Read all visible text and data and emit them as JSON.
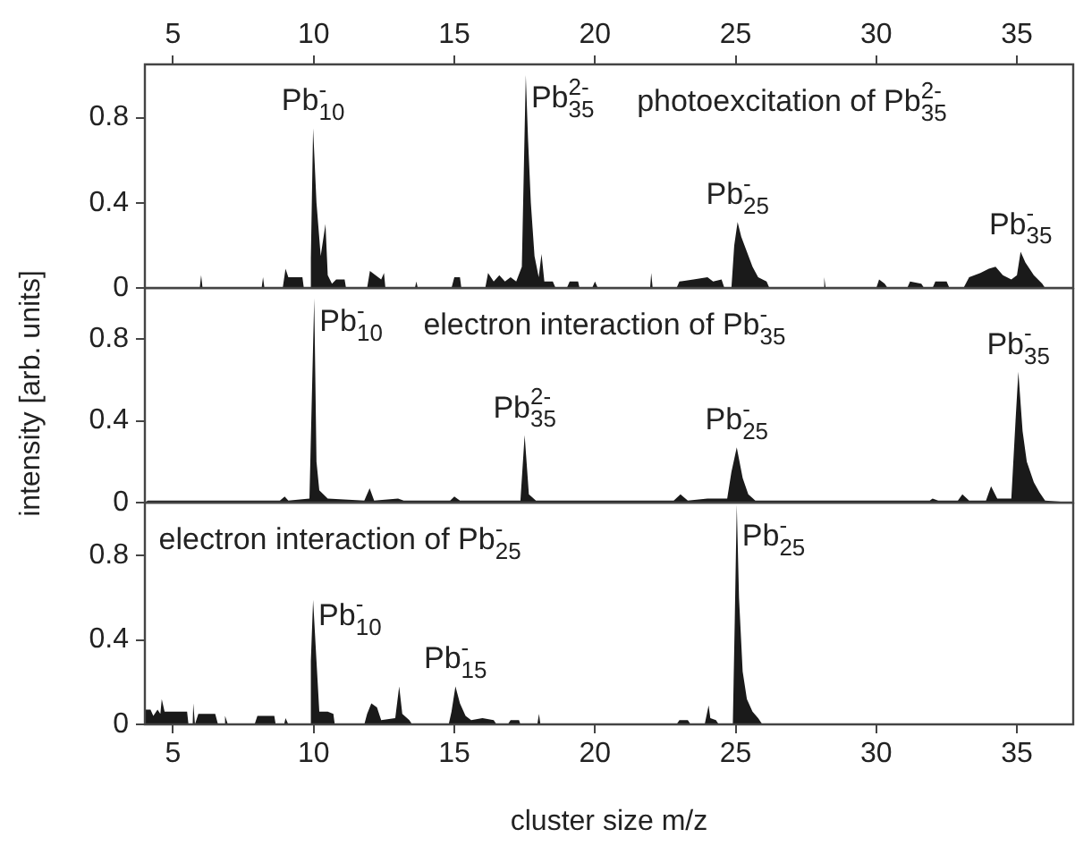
{
  "chart_data": [
    {
      "type": "area",
      "title": "photoexcitation of Pb$^{2-}$$_{35}$",
      "x": [
        4,
        5.95,
        6,
        6.05,
        8.15,
        8.2,
        8.25,
        8.9,
        9.0,
        9.1,
        9.6,
        9.65,
        9.85,
        9.9,
        9.98,
        10.1,
        10.25,
        10.42,
        10.5,
        10.65,
        10.8,
        11.1,
        11.15,
        11.9,
        12.0,
        12.2,
        12.4,
        12.5,
        12.55,
        13.6,
        13.65,
        13.7,
        14.9,
        15.0,
        15.2,
        15.25,
        16.1,
        16.2,
        16.4,
        16.6,
        16.8,
        17.0,
        17.2,
        17.4,
        17.54,
        17.62,
        17.72,
        17.85,
        18.0,
        18.1,
        18.2,
        18.5,
        18.6,
        19.0,
        19.1,
        19.4,
        19.45,
        19.9,
        20.0,
        20.1,
        21.96,
        22.0,
        22.05,
        22.9,
        23.0,
        23.5,
        24.0,
        24.2,
        24.5,
        24.6,
        24.85,
        24.95,
        25.07,
        25.2,
        25.4,
        25.6,
        25.8,
        26.1,
        26.2,
        28.1,
        28.15,
        28.2,
        30.0,
        30.1,
        30.3,
        30.4,
        31.1,
        31.2,
        31.6,
        31.7,
        32.0,
        32.1,
        32.5,
        32.6,
        33.1,
        33.3,
        33.7,
        34.0,
        34.24,
        34.5,
        34.8,
        35.0,
        35.13,
        35.3,
        35.6,
        35.9,
        36.0,
        37
      ],
      "values": [
        0,
        0,
        0.06,
        0,
        0,
        0.05,
        0,
        0,
        0.09,
        0.05,
        0.05,
        0,
        0,
        0.14,
        0.75,
        0.4,
        0.15,
        0.3,
        0.06,
        0.02,
        0.04,
        0.04,
        0,
        0,
        0.08,
        0.06,
        0.04,
        0.07,
        0,
        0,
        0.03,
        0,
        0,
        0.05,
        0.05,
        0,
        0,
        0.07,
        0.03,
        0.06,
        0.03,
        0.05,
        0.03,
        0.1,
        1.0,
        0.7,
        0.4,
        0.15,
        0.05,
        0.16,
        0.03,
        0.03,
        0,
        0,
        0.03,
        0.03,
        0,
        0,
        0.03,
        0,
        0,
        0.07,
        0,
        0,
        0.03,
        0.04,
        0.05,
        0.03,
        0.04,
        0,
        0,
        0.2,
        0.31,
        0.24,
        0.17,
        0.1,
        0.05,
        0.03,
        0,
        0,
        0.05,
        0,
        0,
        0.04,
        0.02,
        0,
        0,
        0.03,
        0.02,
        0,
        0,
        0.03,
        0.03,
        0,
        0,
        0.05,
        0.07,
        0.09,
        0.1,
        0.06,
        0.04,
        0.06,
        0.17,
        0.12,
        0.06,
        0.02,
        0,
        0
      ],
      "color": "#1a1a1a",
      "marker": "none",
      "xlim": [
        4,
        37
      ],
      "x2lim": [
        4,
        37
      ],
      "x2ticks": [
        5,
        10,
        15,
        20,
        25,
        30,
        35
      ],
      "ylim": [
        0,
        1.05
      ],
      "yticks": [
        0,
        0.4,
        0.8
      ],
      "tick_labels": "y",
      "grid": false,
      "legend": false,
      "annotations": [
        {
          "text": "Pb$^{-}$$_{10}$",
          "x": 9.98,
          "y": 0.75
        },
        {
          "text": "Pb$^{2-}$$_{35}$",
          "x": 17.54,
          "y": 1.0
        },
        {
          "text": "Pb$^{-}$$_{25}$",
          "x": 25.07,
          "y": 0.31
        },
        {
          "text": "Pb$^{-}$$_{35}$",
          "x": 35.13,
          "y": 0.17
        }
      ]
    },
    {
      "type": "area",
      "title": "electron interaction of Pb$^{-}$$_{35}$",
      "ylabel": "intensity [arb. units]",
      "x": [
        4,
        4.1,
        8.8,
        8.97,
        9.1,
        9.85,
        9.95,
        10.02,
        10.1,
        10.2,
        10.5,
        11.8,
        11.99,
        12.15,
        13.0,
        13.2,
        14.85,
        15.0,
        15.2,
        17.35,
        17.5,
        17.65,
        17.9,
        22.8,
        23.04,
        23.3,
        24.0,
        24.7,
        24.85,
        25.04,
        25.25,
        25.45,
        25.7,
        31.9,
        32.0,
        32.2,
        32.9,
        33.06,
        33.3,
        33.9,
        34.08,
        34.3,
        34.8,
        34.95,
        35.05,
        35.2,
        35.35,
        35.6,
        35.8,
        36.0,
        37
      ],
      "values": [
        0,
        0.01,
        0.01,
        0.03,
        0.01,
        0.02,
        0.6,
        1.0,
        0.2,
        0.06,
        0.02,
        0.01,
        0.07,
        0.01,
        0.02,
        0.01,
        0.01,
        0.03,
        0.01,
        0.01,
        0.33,
        0.04,
        0.01,
        0.01,
        0.04,
        0.01,
        0.02,
        0.02,
        0.15,
        0.27,
        0.12,
        0.04,
        0.01,
        0.01,
        0.02,
        0.01,
        0.01,
        0.04,
        0.01,
        0.01,
        0.08,
        0.02,
        0.02,
        0.4,
        0.64,
        0.35,
        0.2,
        0.1,
        0.05,
        0.01,
        0
      ],
      "color": "#1a1a1a",
      "marker": "none",
      "xlim": [
        4,
        37
      ],
      "ylim": [
        0,
        1.05
      ],
      "yticks": [
        0,
        0.4,
        0.8
      ],
      "tick_labels": "y",
      "grid": false,
      "legend": false,
      "annotations": [
        {
          "text": "Pb$^{-}$$_{10}$",
          "x": 10.02,
          "y": 1.0
        },
        {
          "text": "Pb$^{2-}$$_{35}$",
          "x": 17.5,
          "y": 0.33
        },
        {
          "text": "Pb$^{-}$$_{25}$",
          "x": 25.04,
          "y": 0.27
        },
        {
          "text": "Pb$^{-}$$_{35}$",
          "x": 35.05,
          "y": 0.64
        }
      ]
    },
    {
      "type": "area",
      "title": "electron interaction of Pb$^{-}$$_{25}$",
      "xlabel": "cluster size m/z",
      "x": [
        4,
        4.0,
        4.2,
        4.3,
        4.45,
        4.55,
        4.6,
        4.7,
        5.0,
        5.5,
        5.55,
        5.7,
        5.72,
        5.78,
        5.9,
        6.5,
        6.6,
        6.8,
        6.85,
        6.95,
        7.9,
        8.0,
        8.6,
        8.65,
        8.95,
        9.0,
        9.1,
        9.85,
        9.9,
        9.98,
        10.1,
        10.2,
        10.5,
        10.7,
        10.75,
        11.8,
        11.9,
        12.05,
        12.25,
        12.4,
        12.9,
        13.04,
        13.15,
        13.4,
        13.5,
        14.8,
        14.9,
        15.04,
        15.2,
        15.4,
        15.6,
        16.0,
        16.4,
        16.5,
        16.9,
        17.0,
        17.3,
        17.35,
        17.95,
        18.01,
        18.06,
        22.9,
        23.0,
        23.3,
        23.4,
        23.9,
        24.04,
        24.1,
        24.3,
        24.4,
        24.9,
        24.97,
        25.04,
        25.12,
        25.25,
        25.4,
        25.6,
        25.8,
        25.95,
        37
      ],
      "values": [
        0,
        0.07,
        0.07,
        0.04,
        0.07,
        0.05,
        0.12,
        0.06,
        0.06,
        0.06,
        0,
        0,
        0.1,
        0,
        0.05,
        0.05,
        0,
        0,
        0.04,
        0,
        0,
        0.04,
        0.04,
        0,
        0,
        0.03,
        0,
        0,
        0.3,
        0.59,
        0.3,
        0.06,
        0.06,
        0.05,
        0,
        0,
        0.05,
        0.1,
        0.08,
        0.02,
        0.03,
        0.18,
        0.05,
        0.02,
        0,
        0,
        0.06,
        0.18,
        0.1,
        0.04,
        0.02,
        0.03,
        0.02,
        0,
        0,
        0.02,
        0.02,
        0,
        0,
        0.05,
        0,
        0,
        0.02,
        0.02,
        0,
        0,
        0.09,
        0.03,
        0.02,
        0,
        0,
        0.5,
        1.04,
        0.6,
        0.25,
        0.12,
        0.06,
        0.03,
        0,
        0
      ],
      "color": "#1a1a1a",
      "marker": "none",
      "xlim": [
        4,
        37
      ],
      "xticks": [
        5,
        10,
        15,
        20,
        25,
        30,
        35
      ],
      "ylim": [
        0,
        1.05
      ],
      "yticks": [
        0,
        0.4,
        0.8
      ],
      "grid": false,
      "legend": false,
      "annotations": [
        {
          "text": "Pb$^{-}$$_{10}$",
          "x": 9.98,
          "y": 0.59
        },
        {
          "text": "Pb$^{-}$$_{15}$",
          "x": 15.04,
          "y": 0.18
        },
        {
          "text": "Pb$^{-}$$_{25}$",
          "x": 25.04,
          "y": 1.04
        }
      ]
    }
  ]
}
